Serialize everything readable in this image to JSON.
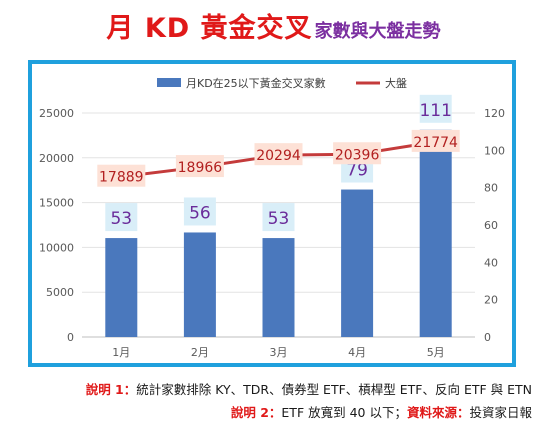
{
  "title": {
    "main": "月 KD 黃金交叉",
    "sub": "家數與大盤走勢"
  },
  "notes": {
    "note1_label": "說明 1：",
    "note1_text": "統計家數排除 KY、TDR、債券型 ETF、槓桿型 ETF、反向 ETF 與 ETN",
    "note2_label": "說明 2：",
    "note2_text": "ETF 放寬到 40 以下；",
    "note2_source_label": "資料來源：",
    "note2_source": "投資家日報"
  },
  "colors": {
    "bar": "#4a78bd",
    "line": "#c43b3b",
    "frame": "#1fa0dd",
    "bar_label": "#6a2c9a",
    "line_label_bg": "#fde1d6",
    "bar_label_bg": "#d9eef8"
  },
  "chart_data": {
    "type": "bar",
    "categories": [
      "1月",
      "2月",
      "3月",
      "4月",
      "5月"
    ],
    "series": [
      {
        "name": "月KD在25以下黃金交叉家數",
        "type": "bar",
        "axis": "right",
        "values": [
          53,
          56,
          53,
          79,
          111
        ]
      },
      {
        "name": "大盤",
        "type": "line",
        "axis": "left",
        "values": [
          17889,
          18966,
          20294,
          20396,
          21774
        ]
      }
    ],
    "y_left": {
      "min": 0,
      "max": 25000,
      "ticks": [
        0,
        5000,
        10000,
        15000,
        20000,
        25000
      ]
    },
    "y_right": {
      "min": 0,
      "max": 120,
      "ticks": [
        0,
        20,
        40,
        60,
        80,
        100,
        120
      ]
    },
    "legend_position": "top",
    "grid": true
  }
}
